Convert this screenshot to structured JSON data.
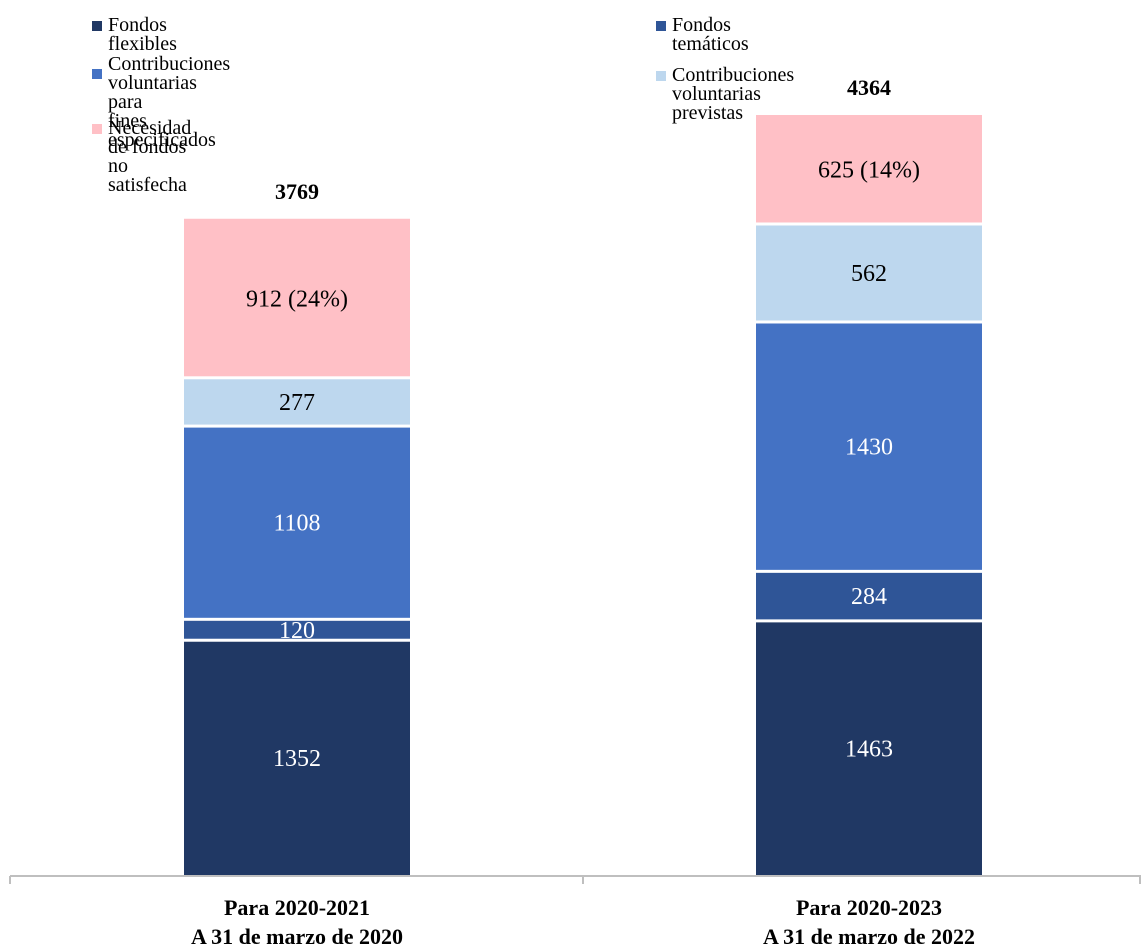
{
  "chart_data": {
    "type": "bar",
    "stacked": true,
    "title": "",
    "xlabel": "",
    "ylabel": "",
    "ylim": [
      0,
      4364
    ],
    "grid": false,
    "legend_position": "top",
    "categories": [
      [
        "Para 2020-2021",
        "A 31 de marzo de 2020"
      ],
      [
        "Para 2020-2023",
        "A 31 de marzo de 2022"
      ]
    ],
    "totals": [
      3769,
      4364
    ],
    "series": [
      {
        "name": "Fondos flexibles",
        "color": "#203864",
        "label_color": "#ffffff",
        "values": [
          1352,
          1463
        ],
        "labels": [
          "1352",
          "1463"
        ]
      },
      {
        "name": "Fondos temáticos",
        "color": "#2f5597",
        "label_color": "#ffffff",
        "values": [
          120,
          284
        ],
        "labels": [
          "120",
          "284"
        ]
      },
      {
        "name": "Contribuciones voluntarias para\nfines especificados",
        "color": "#4472c4",
        "label_color": "#ffffff",
        "values": [
          1108,
          1430
        ],
        "labels": [
          "1108",
          "1430"
        ]
      },
      {
        "name": "Contribuciones voluntarias previstas",
        "color": "#bdd7ee",
        "label_color": "#000000",
        "values": [
          277,
          562
        ],
        "labels": [
          "277",
          "562"
        ]
      },
      {
        "name": "Necesidad de fondos no satisfecha",
        "color": "#ffc0c6",
        "label_color": "#000000",
        "values": [
          912,
          625
        ],
        "labels": [
          "912 (24%)",
          "625 (14%)"
        ]
      }
    ]
  }
}
